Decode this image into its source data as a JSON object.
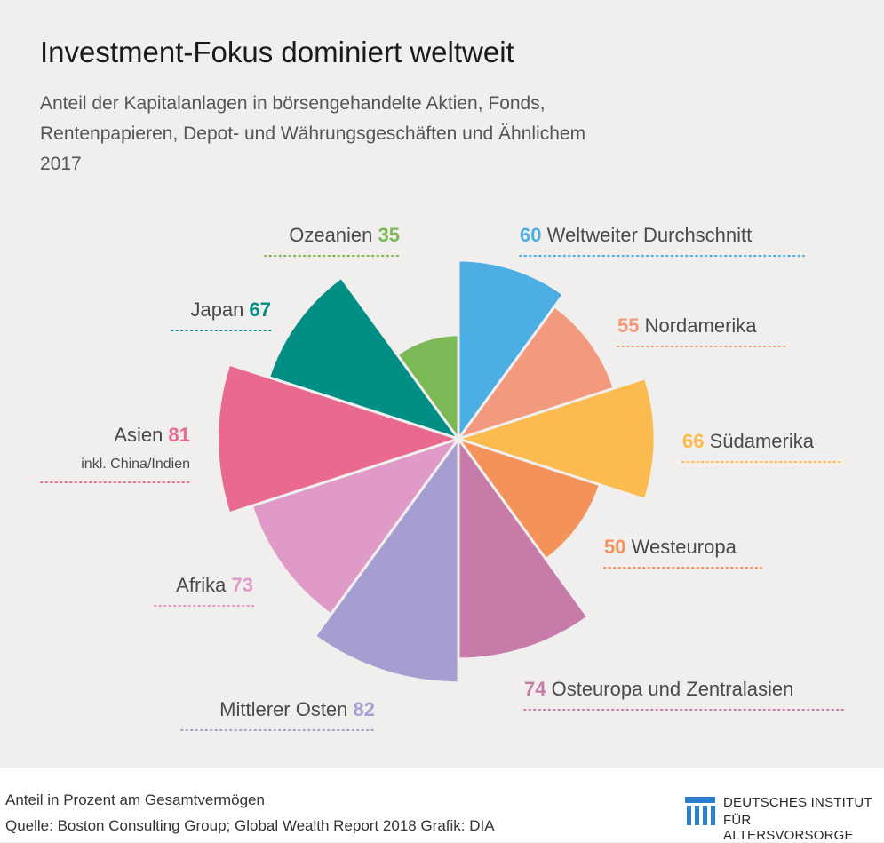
{
  "title": "Investment-Fokus dominiert weltweit",
  "subtitle_lines": [
    "Anteil der Kapitalanlagen in börsengehandelte Aktien, Fonds,",
    "Rentenpapieren, Depot- und Währungsgeschäften und Ähnlichem",
    "2017"
  ],
  "chart_data": {
    "type": "polar-area",
    "categories": [
      {
        "name": "Weltweiter Durchschnitt",
        "value": 60,
        "color": "#4daee3"
      },
      {
        "name": "Nordamerika",
        "value": 55,
        "color": "#f39a7e"
      },
      {
        "name": "Südamerika",
        "value": 66,
        "color": "#fbbb4e"
      },
      {
        "name": "Westeuropa",
        "value": 50,
        "color": "#f3935a"
      },
      {
        "name": "Osteuropa und Zentralasien",
        "value": 74,
        "color": "#c67ba9"
      },
      {
        "name": "Mittlerer Osten",
        "value": 82,
        "color": "#a69ed0"
      },
      {
        "name": "Afrika",
        "value": 73,
        "color": "#e09ac7"
      },
      {
        "name": "Asien",
        "sublabel": "inkl. China/Indien",
        "value": 81,
        "color": "#e96a8e"
      },
      {
        "name": "Japan",
        "value": 67,
        "color": "#008e85"
      },
      {
        "name": "Ozeanien",
        "value": 35,
        "color": "#7ab955"
      }
    ]
  },
  "footer": {
    "note": "Anteil in Prozent am Gesamtvermögen",
    "source": "Quelle: Boston Consulting Group; Global Wealth Report 2018  Grafik: DIA"
  },
  "logo": {
    "line1": "DEUTSCHES INSTITUT",
    "line2": "FÜR ALTERSVORSORGE",
    "color": "#2a7fd0"
  }
}
